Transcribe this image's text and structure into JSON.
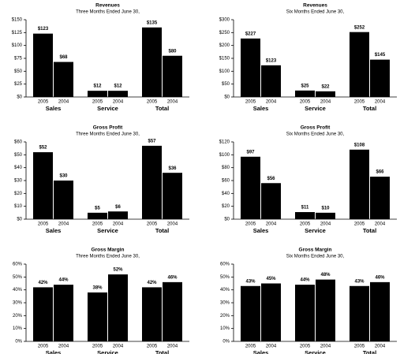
{
  "chart_data": [
    {
      "type": "bar",
      "title": "Revenues",
      "subtitle": "Three Months Ended June 30,",
      "groups": [
        "Sales",
        "Service",
        "Total"
      ],
      "categories": [
        "2005",
        "2004",
        "2005",
        "2004",
        "2005",
        "2004"
      ],
      "values": [
        123,
        68,
        12,
        12,
        135,
        80
      ],
      "value_labels": [
        "$123",
        "$68",
        "$12",
        "$12",
        "$135",
        "$80"
      ],
      "color": "#000000",
      "ylim": [
        0,
        150
      ],
      "yticks": [
        {
          "value": 0,
          "label": "$0"
        },
        {
          "value": 25,
          "label": "$25"
        },
        {
          "value": 50,
          "label": "$50"
        },
        {
          "value": 75,
          "label": "$75"
        },
        {
          "value": 100,
          "label": "$100"
        },
        {
          "value": 125,
          "label": "$125"
        },
        {
          "value": 150,
          "label": "$150"
        }
      ]
    },
    {
      "type": "bar",
      "title": "Revenues",
      "subtitle": "Six Months Ended June 30,",
      "groups": [
        "Sales",
        "Service",
        "Total"
      ],
      "categories": [
        "2005",
        "2004",
        "2005",
        "2004",
        "2005",
        "2004"
      ],
      "values": [
        227,
        123,
        25,
        22,
        252,
        145
      ],
      "value_labels": [
        "$227",
        "$123",
        "$25",
        "$22",
        "$252",
        "$145"
      ],
      "color": "#000000",
      "ylim": [
        0,
        300
      ],
      "yticks": [
        {
          "value": 0,
          "label": "$0"
        },
        {
          "value": 50,
          "label": "$50"
        },
        {
          "value": 100,
          "label": "$100"
        },
        {
          "value": 150,
          "label": "$150"
        },
        {
          "value": 200,
          "label": "$200"
        },
        {
          "value": 250,
          "label": "$250"
        },
        {
          "value": 300,
          "label": "$300"
        }
      ]
    },
    {
      "type": "bar",
      "title": "Gross Profit",
      "subtitle": "Three Months Ended June 30,",
      "groups": [
        "Sales",
        "Service",
        "Total"
      ],
      "categories": [
        "2005",
        "2004",
        "2005",
        "2004",
        "2005",
        "2004"
      ],
      "values": [
        52,
        30,
        5,
        6,
        57,
        36
      ],
      "value_labels": [
        "$52",
        "$30",
        "$5",
        "$6",
        "$57",
        "$36"
      ],
      "color": "#000000",
      "ylim": [
        0,
        60
      ],
      "yticks": [
        {
          "value": 0,
          "label": "$0"
        },
        {
          "value": 10,
          "label": "$10"
        },
        {
          "value": 20,
          "label": "$20"
        },
        {
          "value": 30,
          "label": "$30"
        },
        {
          "value": 40,
          "label": "$40"
        },
        {
          "value": 50,
          "label": "$50"
        },
        {
          "value": 60,
          "label": "$60"
        }
      ]
    },
    {
      "type": "bar",
      "title": "Gross Profit",
      "subtitle": "Six Months Ended June 30,",
      "groups": [
        "Sales",
        "Service",
        "Total"
      ],
      "categories": [
        "2005",
        "2004",
        "2005",
        "2004",
        "2005",
        "2004"
      ],
      "values": [
        97,
        56,
        11,
        10,
        108,
        66
      ],
      "value_labels": [
        "$97",
        "$56",
        "$11",
        "$10",
        "$108",
        "$66"
      ],
      "color": "#000000",
      "ylim": [
        0,
        120
      ],
      "yticks": [
        {
          "value": 0,
          "label": "$0"
        },
        {
          "value": 20,
          "label": "$20"
        },
        {
          "value": 40,
          "label": "$40"
        },
        {
          "value": 60,
          "label": "$60"
        },
        {
          "value": 80,
          "label": "$80"
        },
        {
          "value": 100,
          "label": "$100"
        },
        {
          "value": 120,
          "label": "$120"
        }
      ]
    },
    {
      "type": "bar",
      "title": "Gross Margin",
      "subtitle": "Three Months Ended June 30,",
      "groups": [
        "Sales",
        "Service",
        "Total"
      ],
      "categories": [
        "2005",
        "2004",
        "2005",
        "2004",
        "2005",
        "2004"
      ],
      "values": [
        42,
        44,
        38,
        52,
        42,
        46
      ],
      "value_labels": [
        "42%",
        "44%",
        "38%",
        "52%",
        "42%",
        "46%"
      ],
      "color": "#000000",
      "ylim": [
        0,
        60
      ],
      "yticks": [
        {
          "value": 0,
          "label": "0%"
        },
        {
          "value": 10,
          "label": "10%"
        },
        {
          "value": 20,
          "label": "20%"
        },
        {
          "value": 30,
          "label": "30%"
        },
        {
          "value": 40,
          "label": "40%"
        },
        {
          "value": 50,
          "label": "50%"
        },
        {
          "value": 60,
          "label": "60%"
        }
      ]
    },
    {
      "type": "bar",
      "title": "Gross Margin",
      "subtitle": "Six Months Ended June 30,",
      "groups": [
        "Sales",
        "Service",
        "Total"
      ],
      "categories": [
        "2005",
        "2004",
        "2005",
        "2004",
        "2005",
        "2004"
      ],
      "values": [
        43,
        45,
        44,
        48,
        43,
        46
      ],
      "value_labels": [
        "43%",
        "45%",
        "44%",
        "48%",
        "43%",
        "46%"
      ],
      "color": "#000000",
      "ylim": [
        0,
        60
      ],
      "yticks": [
        {
          "value": 0,
          "label": "0%"
        },
        {
          "value": 10,
          "label": "10%"
        },
        {
          "value": 20,
          "label": "20%"
        },
        {
          "value": 30,
          "label": "30%"
        },
        {
          "value": 40,
          "label": "40%"
        },
        {
          "value": 50,
          "label": "50%"
        },
        {
          "value": 60,
          "label": "60%"
        }
      ]
    }
  ]
}
